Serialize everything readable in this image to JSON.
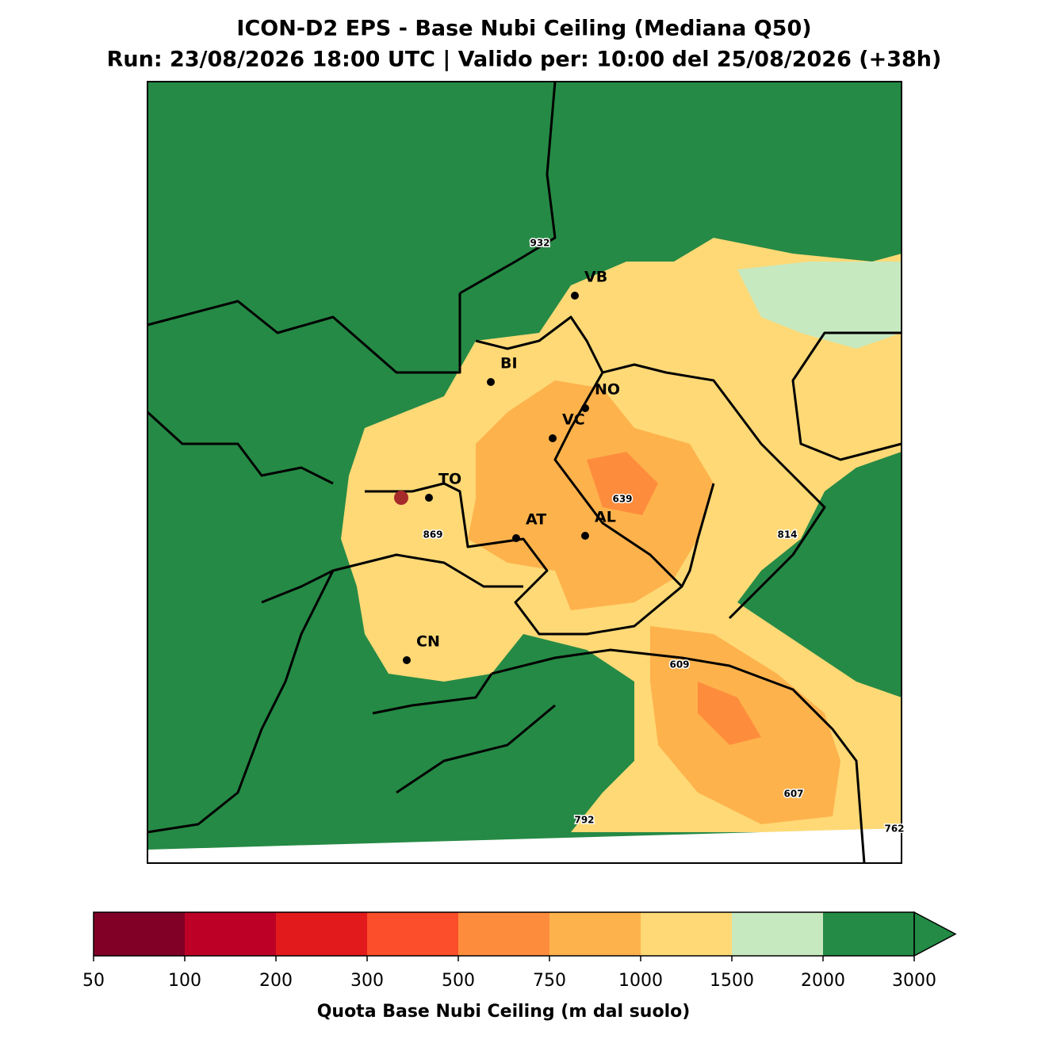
{
  "title": "ICON-D2 EPS - Base Nubi Ceiling (Mediana Q50)",
  "subtitle": "Run: 23/08/2026 18:00 UTC | Valido per: 10:00 del 25/08/2026 (+38h)",
  "cities": [
    "VB",
    "BI",
    "NO",
    "VC",
    "TO",
    "AT",
    "AL",
    "CN"
  ],
  "value_labels": [
    932,
    639,
    869,
    814,
    609,
    607,
    792,
    762
  ],
  "colorbar": {
    "label": "Quota Base Nubi Ceiling (m dal suolo)",
    "ticks": [
      50,
      100,
      200,
      300,
      500,
      750,
      1000,
      1500,
      2000,
      3000
    ],
    "colors": [
      "#800026",
      "#bd0026",
      "#e31a1c",
      "#fc4e2a",
      "#fd8d3c",
      "#feb24c",
      "#fed976",
      "#c7e9c0",
      "#238b45"
    ],
    "extend": "max"
  }
}
